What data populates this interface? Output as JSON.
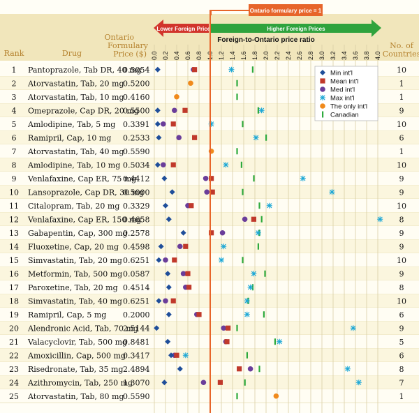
{
  "chart_data": {
    "type": "scatter",
    "title": "",
    "callout": "Ontario formulary price = 1",
    "arrow_left_label": "Lower Foreign Prices",
    "arrow_right_label": "Higher Foreign Prices",
    "xlabel": "Foreign-to-Ontario price ratio",
    "xlim": [
      0,
      4.0
    ],
    "x_ticks": [
      "0.0",
      "0.2",
      "0.4",
      "0.6",
      "0.8",
      "1.0",
      "1.2",
      "1.4",
      "1.6",
      "1.8",
      "2.0",
      "2.2",
      "2.4",
      "2.6",
      "2.8",
      "3.0",
      "3.2",
      "3.4",
      "3.6",
      "3.8",
      "4.0"
    ],
    "reference_line": 1.0,
    "columns": {
      "rank": "Rank",
      "drug": "Drug",
      "price": [
        "Ontario",
        "Formulary",
        "Price ($)"
      ],
      "countries": [
        "No. of",
        "Countries"
      ]
    },
    "legend": [
      {
        "key": "min",
        "label": "Min int'l",
        "marker": "diamond",
        "color": "#1f4e9a"
      },
      {
        "key": "mean",
        "label": "Mean int'l",
        "marker": "square",
        "color": "#c0392b"
      },
      {
        "key": "med",
        "label": "Med int'l",
        "marker": "circle",
        "color": "#6a3d9a"
      },
      {
        "key": "max",
        "label": "Max int'l",
        "marker": "x",
        "color": "#1aa7d6"
      },
      {
        "key": "only",
        "label": "The only int'l",
        "marker": "circle",
        "color": "#f08a1c"
      },
      {
        "key": "canadian",
        "label": "Canadian",
        "marker": "bar",
        "color": "#2eaa3d"
      }
    ],
    "rows": [
      {
        "rank": "1",
        "drug": "Pantoprazole, Tab DR, 40 mg",
        "price": "0.5054",
        "countries": "10",
        "min": 0.06,
        "mean": 0.72,
        "med": 0.7,
        "max": 1.38,
        "canadian": 1.76
      },
      {
        "rank": "2",
        "drug": "Atorvastatin, Tab, 20 mg",
        "price": "0.5200",
        "countries": "1",
        "only": 0.65,
        "canadian": 1.48
      },
      {
        "rank": "3",
        "drug": "Atorvastatin, Tab, 10 mg",
        "price": "0.4160",
        "countries": "1",
        "only": 0.4,
        "canadian": 1.48
      },
      {
        "rank": "4",
        "drug": "Omeprazole, Cap DR, 20 mg",
        "price": "0.5500",
        "countries": "9",
        "min": 0.06,
        "mean": 0.55,
        "med": 0.36,
        "max": 1.92,
        "canadian": 1.86
      },
      {
        "rank": "5",
        "drug": "Amlodipine, Tab, 5 mg",
        "price": "0.3391",
        "countries": "10",
        "min": 0.06,
        "mean": 0.34,
        "med": 0.16,
        "max": 1.02,
        "canadian": 1.58
      },
      {
        "rank": "6",
        "drug": "Ramipril, Cap, 10 mg",
        "price": "0.2533",
        "countries": "6",
        "min": 0.08,
        "mean": 0.72,
        "med": 0.44,
        "max": 1.82,
        "canadian": 2.0
      },
      {
        "rank": "7",
        "drug": "Atorvastatin, Tab, 40 mg",
        "price": "0.5590",
        "countries": "1",
        "only": 1.02,
        "canadian": 1.48
      },
      {
        "rank": "8",
        "drug": "Amlodipine, Tab, 10 mg",
        "price": "0.5034",
        "countries": "10",
        "min": 0.06,
        "mean": 0.34,
        "med": 0.16,
        "max": 1.28,
        "canadian": 1.56
      },
      {
        "rank": "9",
        "drug": "Venlafaxine, Cap ER, 75 mg",
        "price": "0.4412",
        "countries": "9",
        "min": 0.18,
        "mean": 1.02,
        "med": 0.92,
        "max": 2.66,
        "canadian": 1.78
      },
      {
        "rank": "10",
        "drug": "Lansoprazole, Cap DR, 30 mg",
        "price": "0.5000",
        "countries": "9",
        "min": 0.32,
        "mean": 1.04,
        "med": 0.94,
        "max": 3.18,
        "canadian": 1.58
      },
      {
        "rank": "11",
        "drug": "Citalopram, Tab, 20 mg",
        "price": "0.3329",
        "countries": "10",
        "min": 0.2,
        "mean": 0.66,
        "med": 0.6,
        "max": 2.06,
        "canadian": 1.88
      },
      {
        "rank": "12",
        "drug": "Venlafaxine, Cap ER, 150 mg",
        "price": "0.4658",
        "countries": "8",
        "min": 0.26,
        "mean": 1.78,
        "med": 1.62,
        "max": 4.04,
        "canadian": 1.92
      },
      {
        "rank": "13",
        "drug": "Gabapentin, Cap, 300 mg",
        "price": "0.2578",
        "countries": "9",
        "min": 0.52,
        "mean": 1.02,
        "med": 1.22,
        "max": 1.86,
        "canadian": 1.88
      },
      {
        "rank": "14",
        "drug": "Fluoxetine, Cap, 20 mg",
        "price": "0.4598",
        "countries": "9",
        "min": 0.12,
        "mean": 0.56,
        "med": 0.46,
        "max": 1.24,
        "canadian": 1.86
      },
      {
        "rank": "15",
        "drug": "Simvastatin, Tab, 20 mg",
        "price": "0.6251",
        "countries": "10",
        "min": 0.08,
        "mean": 0.36,
        "med": 0.2,
        "max": 1.2,
        "canadian": 1.58
      },
      {
        "rank": "16",
        "drug": "Metformin, Tab, 500 mg",
        "price": "0.0587",
        "countries": "9",
        "min": 0.24,
        "mean": 0.6,
        "med": 0.52,
        "max": 1.78,
        "canadian": 1.98
      },
      {
        "rank": "17",
        "drug": "Paroxetine, Tab, 20 mg",
        "price": "0.4514",
        "countries": "8",
        "min": 0.26,
        "mean": 0.62,
        "med": 0.56,
        "max": 1.72,
        "canadian": 1.76
      },
      {
        "rank": "18",
        "drug": "Simvastatin, Tab, 40 mg",
        "price": "0.6251",
        "countries": "10",
        "min": 0.08,
        "mean": 0.34,
        "med": 0.2,
        "max": 1.66,
        "canadian": 1.68
      },
      {
        "rank": "19",
        "drug": "Ramipril, Cap, 5 mg",
        "price": "0.2000",
        "countries": "6",
        "min": 0.26,
        "mean": 0.8,
        "med": 0.76,
        "max": 1.66,
        "canadian": 1.96
      },
      {
        "rank": "20",
        "drug": "Alendronic Acid, Tab, 70 mg",
        "price": "2.5144",
        "countries": "9",
        "min": 0.04,
        "mean": 1.32,
        "med": 1.24,
        "max": 3.56,
        "canadian": 1.48
      },
      {
        "rank": "21",
        "drug": "Valacyclovir, Tab, 500 mg",
        "price": "0.8481",
        "countries": "5",
        "min": 0.24,
        "mean": 1.3,
        "med": 1.28,
        "max": 2.24,
        "canadian": 2.16
      },
      {
        "rank": "22",
        "drug": "Amoxicillin, Cap, 500 mg",
        "price": "0.3417",
        "countries": "6",
        "min": 0.3,
        "mean": 0.4,
        "med": 0.36,
        "max": 0.56,
        "canadian": 1.66
      },
      {
        "rank": "23",
        "drug": "Risedronate, Tab, 35 mg",
        "price": "2.4894",
        "countries": "8",
        "min": 0.46,
        "mean": 1.52,
        "med": 1.72,
        "max": 3.46,
        "canadian": 1.88
      },
      {
        "rank": "24",
        "drug": "Azithromycin, Tab, 250 mg",
        "price": "1.3070",
        "countries": "7",
        "min": 0.18,
        "mean": 1.18,
        "med": 0.88,
        "max": 3.66,
        "canadian": 1.62
      },
      {
        "rank": "25",
        "drug": "Atorvastatin, Tab, 80 mg",
        "price": "0.5590",
        "countries": "1",
        "only": 2.18,
        "canadian": 1.48
      }
    ]
  }
}
